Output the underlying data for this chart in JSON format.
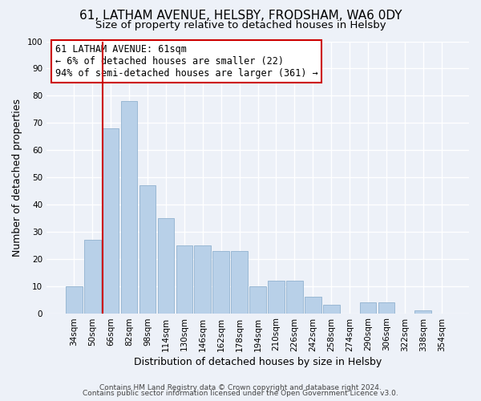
{
  "title": "61, LATHAM AVENUE, HELSBY, FRODSHAM, WA6 0DY",
  "subtitle": "Size of property relative to detached houses in Helsby",
  "xlabel": "Distribution of detached houses by size in Helsby",
  "ylabel": "Number of detached properties",
  "bar_labels": [
    "34sqm",
    "50sqm",
    "66sqm",
    "82sqm",
    "98sqm",
    "114sqm",
    "130sqm",
    "146sqm",
    "162sqm",
    "178sqm",
    "194sqm",
    "210sqm",
    "226sqm",
    "242sqm",
    "258sqm",
    "274sqm",
    "290sqm",
    "306sqm",
    "322sqm",
    "338sqm",
    "354sqm"
  ],
  "bar_values": [
    10,
    27,
    68,
    78,
    47,
    35,
    25,
    25,
    23,
    23,
    10,
    12,
    12,
    6,
    3,
    0,
    4,
    4,
    0,
    1,
    0
  ],
  "bar_color": "#b8d0e8",
  "bar_edge_color": "#9ab8d4",
  "vline_color": "#cc0000",
  "annotation_line1": "61 LATHAM AVENUE: 61sqm",
  "annotation_line2": "← 6% of detached houses are smaller (22)",
  "annotation_line3": "94% of semi-detached houses are larger (361) →",
  "ylim": [
    0,
    100
  ],
  "yticks": [
    0,
    10,
    20,
    30,
    40,
    50,
    60,
    70,
    80,
    90,
    100
  ],
  "footer_line1": "Contains HM Land Registry data © Crown copyright and database right 2024.",
  "footer_line2": "Contains public sector information licensed under the Open Government Licence v3.0.",
  "bg_color": "#edf1f8",
  "plot_bg_color": "#edf1f8",
  "grid_color": "#ffffff",
  "title_fontsize": 11,
  "subtitle_fontsize": 9.5,
  "axis_label_fontsize": 9,
  "tick_fontsize": 7.5,
  "annotation_fontsize": 8.5,
  "footer_fontsize": 6.5
}
